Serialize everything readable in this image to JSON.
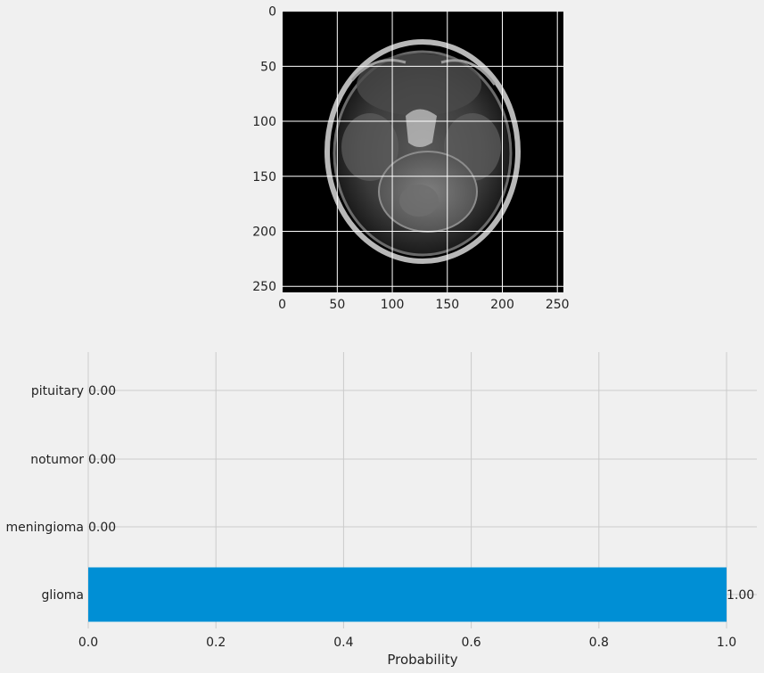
{
  "chart_data": [
    {
      "type": "image",
      "xlim": [
        0,
        255
      ],
      "ylim": [
        255,
        0
      ],
      "xticks": [
        0,
        50,
        100,
        150,
        200,
        250
      ],
      "yticks": [
        0,
        50,
        100,
        150,
        200,
        250
      ],
      "grid": true
    },
    {
      "type": "bar",
      "orientation": "horizontal",
      "categories": [
        "glioma",
        "meningioma",
        "notumor",
        "pituitary"
      ],
      "values": [
        1.0,
        0.0,
        0.0,
        0.0
      ],
      "value_labels": [
        "1.00",
        "0.00",
        "0.00",
        "0.00"
      ],
      "xlabel": "Probability",
      "xlim": [
        0,
        1.05
      ],
      "xticks": [
        "0.0",
        "0.2",
        "0.4",
        "0.6",
        "0.8",
        "1.0"
      ],
      "grid": true,
      "bar_color": "#008fd5"
    }
  ]
}
